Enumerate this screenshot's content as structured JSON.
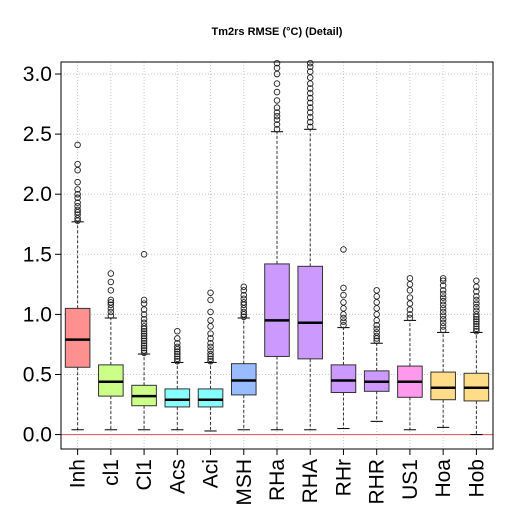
{
  "chart_data": {
    "type": "boxplot",
    "title": "Tm2rs RMSE (°C) (Detail)",
    "xlabel": "",
    "ylabel": "",
    "ylim": [
      -0.12,
      3.1
    ],
    "y_ticks": [
      "0.0",
      "0.5",
      "1.0",
      "1.5",
      "2.0",
      "2.5",
      "3.0"
    ],
    "grid": true,
    "reference_line": {
      "y": 0,
      "color": "#e05050"
    },
    "categories": [
      "Inh",
      "cl1",
      "Cl1",
      "Acs",
      "Aci",
      "MSH",
      "RHa",
      "RHA",
      "RHr",
      "RHR",
      "US1",
      "Hoa",
      "Hob"
    ],
    "boxes": [
      {
        "name": "Inh",
        "color": "#ff9090",
        "whisker_low": 0.04,
        "q1": 0.56,
        "median": 0.79,
        "q3": 1.05,
        "whisker_high": 1.77,
        "outliers": [
          1.78,
          1.8,
          1.83,
          1.85,
          1.87,
          1.9,
          1.93,
          1.97,
          2.0,
          2.04,
          2.1,
          2.2,
          2.25,
          2.41
        ]
      },
      {
        "name": "cl1",
        "color": "#ccff88",
        "whisker_low": 0.04,
        "q1": 0.32,
        "median": 0.44,
        "q3": 0.58,
        "whisker_high": 0.97,
        "outliers": [
          0.99,
          1.02,
          1.05,
          1.08,
          1.1,
          1.12,
          1.2,
          1.27,
          1.34
        ]
      },
      {
        "name": "Cl1",
        "color": "#ccff88",
        "whisker_low": 0.04,
        "q1": 0.24,
        "median": 0.32,
        "q3": 0.41,
        "whisker_high": 0.67,
        "outliers": [
          0.68,
          0.7,
          0.72,
          0.74,
          0.76,
          0.78,
          0.8,
          0.82,
          0.84,
          0.86,
          0.88,
          0.9,
          0.93,
          0.96,
          1.0,
          1.04,
          1.09,
          1.12,
          1.5
        ]
      },
      {
        "name": "Acs",
        "color": "#88ffff",
        "whisker_low": 0.04,
        "q1": 0.23,
        "median": 0.29,
        "q3": 0.38,
        "whisker_high": 0.6,
        "outliers": [
          0.61,
          0.63,
          0.65,
          0.67,
          0.69,
          0.71,
          0.73,
          0.76,
          0.8,
          0.86
        ]
      },
      {
        "name": "Aci",
        "color": "#88ffff",
        "whisker_low": 0.03,
        "q1": 0.23,
        "median": 0.29,
        "q3": 0.38,
        "whisker_high": 0.6,
        "outliers": [
          0.61,
          0.63,
          0.65,
          0.67,
          0.7,
          0.73,
          0.76,
          0.8,
          0.84,
          0.9,
          0.95,
          1.02,
          1.12,
          1.18
        ]
      },
      {
        "name": "MSH",
        "color": "#99bbff",
        "whisker_low": 0.04,
        "q1": 0.33,
        "median": 0.45,
        "q3": 0.59,
        "whisker_high": 0.97,
        "outliers": [
          0.98,
          1.0,
          1.02,
          1.05,
          1.08,
          1.1,
          1.13,
          1.16,
          1.2,
          1.23
        ]
      },
      {
        "name": "RHa",
        "color": "#cc99ff",
        "whisker_low": 0.04,
        "q1": 0.65,
        "median": 0.95,
        "q3": 1.42,
        "whisker_high": 2.52,
        "outliers": [
          2.54,
          2.58,
          2.62,
          2.65,
          2.68,
          2.72,
          2.78,
          2.85,
          2.92,
          3.0,
          3.05,
          3.09
        ]
      },
      {
        "name": "RHA",
        "color": "#cc99ff",
        "whisker_low": 0.04,
        "q1": 0.63,
        "median": 0.93,
        "q3": 1.4,
        "whisker_high": 2.54,
        "outliers": [
          2.56,
          2.6,
          2.64,
          2.68,
          2.72,
          2.76,
          2.8,
          2.84,
          2.88,
          2.92,
          2.97,
          3.02,
          3.06,
          3.09
        ]
      },
      {
        "name": "RHr",
        "color": "#cc99ff",
        "whisker_low": 0.05,
        "q1": 0.35,
        "median": 0.45,
        "q3": 0.58,
        "whisker_high": 0.89,
        "outliers": [
          0.91,
          0.94,
          0.97,
          1.0,
          1.05,
          1.1,
          1.16,
          1.22,
          1.54
        ]
      },
      {
        "name": "RHR",
        "color": "#cc99ff",
        "whisker_low": 0.11,
        "q1": 0.36,
        "median": 0.44,
        "q3": 0.53,
        "whisker_high": 0.76,
        "outliers": [
          0.78,
          0.8,
          0.82,
          0.85,
          0.88,
          0.91,
          0.95,
          1.0,
          1.05,
          1.1,
          1.15,
          1.2
        ]
      },
      {
        "name": "US1",
        "color": "#ff99ee",
        "whisker_low": 0.04,
        "q1": 0.31,
        "median": 0.44,
        "q3": 0.57,
        "whisker_high": 0.95,
        "outliers": [
          0.97,
          1.0,
          1.04,
          1.09,
          1.14,
          1.2,
          1.25,
          1.3
        ]
      },
      {
        "name": "Hoa",
        "color": "#ffdd88",
        "whisker_low": 0.06,
        "q1": 0.29,
        "median": 0.39,
        "q3": 0.52,
        "whisker_high": 0.85,
        "outliers": [
          0.87,
          0.9,
          0.93,
          0.96,
          0.99,
          1.02,
          1.05,
          1.08,
          1.11,
          1.14,
          1.17,
          1.2,
          1.24,
          1.28,
          1.3
        ]
      },
      {
        "name": "Hob",
        "color": "#ffdd88",
        "whisker_low": 0.0,
        "q1": 0.28,
        "median": 0.39,
        "q3": 0.51,
        "whisker_high": 0.85,
        "outliers": [
          0.86,
          0.88,
          0.9,
          0.92,
          0.94,
          0.96,
          0.98,
          1.0,
          1.03,
          1.06,
          1.09,
          1.12,
          1.15,
          1.19,
          1.23,
          1.28
        ]
      }
    ]
  }
}
